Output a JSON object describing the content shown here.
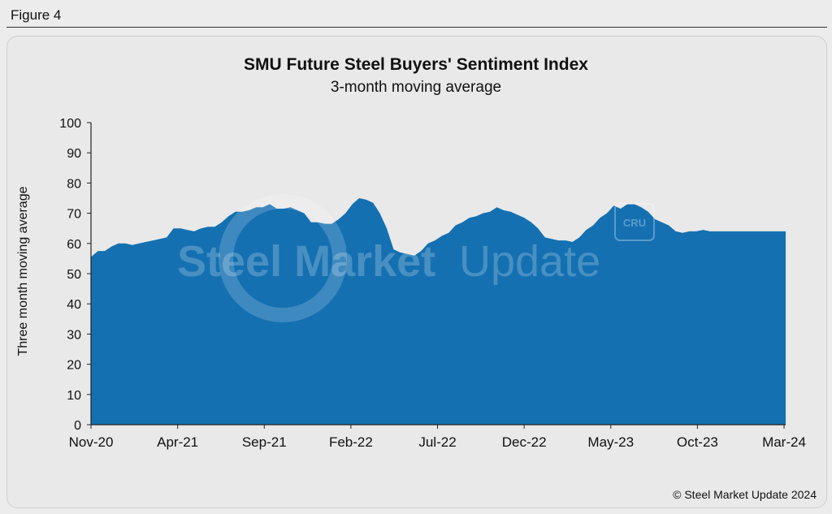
{
  "figure_label": "Figure 4",
  "colors": {
    "area": "#1470b1",
    "axis": "#222222",
    "background": "#ececec"
  },
  "watermark": {
    "text_bold": "Steel Market",
    "text_light": "Update",
    "badge": "CRU"
  },
  "footer": "© Steel Market Update 2024",
  "chart_data": {
    "type": "area",
    "title": "SMU Future Steel Buyers' Sentiment Index",
    "subtitle": "3-month moving average",
    "xlabel": "",
    "ylabel": "Three month moving average",
    "ylim": [
      0,
      100
    ],
    "yticks": [
      0,
      10,
      20,
      30,
      40,
      50,
      60,
      70,
      80,
      90,
      100
    ],
    "xtick_labels": [
      "Nov-20",
      "Apr-21",
      "Sep-21",
      "Feb-22",
      "Jul-22",
      "Dec-22",
      "May-23",
      "Oct-23",
      "Mar-24"
    ],
    "series": [
      {
        "name": "SMU Future Steel Buyers' Sentiment Index (3-month moving average)",
        "x": [
          0,
          2,
          4,
          6,
          8,
          10,
          12,
          14,
          16,
          18,
          20,
          22,
          24,
          26,
          28,
          30,
          32,
          34,
          36,
          38,
          40,
          42,
          44,
          46,
          48,
          50,
          52,
          54,
          56,
          58,
          60,
          62,
          64,
          66,
          68,
          70,
          72,
          74,
          76,
          78,
          80,
          82,
          84,
          86,
          88,
          90,
          92,
          94,
          96,
          98,
          100,
          102,
          104,
          106,
          108,
          110,
          112,
          114,
          116,
          118,
          120,
          122,
          124,
          126,
          128,
          130,
          132,
          134,
          136,
          138,
          140,
          142,
          144,
          146,
          148,
          150,
          152,
          154,
          156,
          158,
          160,
          162,
          164,
          166,
          168,
          170,
          172,
          174,
          176,
          178,
          180,
          182,
          184,
          186,
          188,
          190,
          192,
          194,
          196,
          198,
          200,
          202
        ],
        "values": [
          55.5,
          57.5,
          57.5,
          59,
          60,
          60,
          59.5,
          60,
          60.5,
          61,
          61.5,
          62,
          65,
          65,
          64.5,
          64,
          65,
          65.5,
          65.5,
          67,
          69,
          70.5,
          70.5,
          71,
          72,
          72,
          73,
          71.5,
          71.5,
          72,
          71,
          70,
          67,
          67,
          66.5,
          66.5,
          68,
          70,
          73,
          75,
          74.5,
          73.5,
          70,
          65,
          58,
          57,
          56.5,
          56,
          57.5,
          60,
          61,
          62.5,
          63.5,
          66,
          67,
          68.5,
          69,
          70,
          70.5,
          72,
          71,
          70.5,
          69.5,
          68.5,
          67,
          65,
          62,
          61.5,
          61,
          61,
          60.5,
          62,
          64.5,
          66,
          68.5,
          70,
          72.5,
          71.5,
          73,
          73,
          72,
          70.5,
          68,
          67,
          66,
          64,
          63.5,
          64,
          64,
          64.5,
          64,
          64,
          64,
          64,
          64,
          64,
          64,
          64,
          64,
          64,
          64,
          64
        ]
      }
    ]
  }
}
